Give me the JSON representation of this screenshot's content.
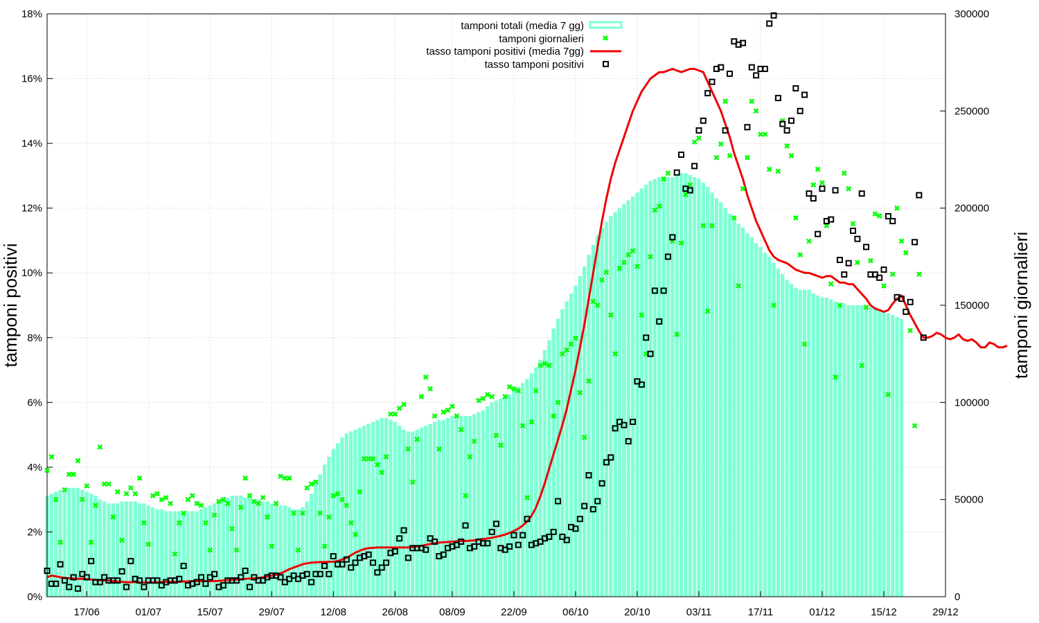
{
  "chart_data": {
    "type": "bar",
    "title": "",
    "ylabel_left": "tamponi positivi",
    "ylabel_right": "tamponi giornalieri",
    "xlabel": "",
    "x_start": "2020-06-08",
    "x_end": "2020-12-29",
    "x_ticks": [
      {
        "date": "2020-06-17",
        "label": "17/06"
      },
      {
        "date": "2020-07-01",
        "label": "01/07"
      },
      {
        "date": "2020-07-15",
        "label": "15/07"
      },
      {
        "date": "2020-07-29",
        "label": "29/07"
      },
      {
        "date": "2020-08-12",
        "label": "12/08"
      },
      {
        "date": "2020-08-26",
        "label": "26/08"
      },
      {
        "date": "2020-09-08",
        "label": "08/09"
      },
      {
        "date": "2020-09-22",
        "label": "22/09"
      },
      {
        "date": "2020-10-06",
        "label": "06/10"
      },
      {
        "date": "2020-10-20",
        "label": "20/10"
      },
      {
        "date": "2020-11-03",
        "label": "03/11"
      },
      {
        "date": "2020-11-17",
        "label": "17/11"
      },
      {
        "date": "2020-12-01",
        "label": "01/12"
      },
      {
        "date": "2020-12-15",
        "label": "15/12"
      },
      {
        "date": "2020-12-29",
        "label": "29/12"
      }
    ],
    "y_left": {
      "min": 0,
      "max": 18,
      "unit": "%",
      "ticks": [
        "0%",
        "2%",
        "4%",
        "6%",
        "8%",
        "10%",
        "12%",
        "14%",
        "16%",
        "18%"
      ]
    },
    "y_right": {
      "min": 0,
      "max": 300000,
      "ticks": [
        "0",
        "50000",
        "100000",
        "150000",
        "200000",
        "250000",
        "300000"
      ]
    },
    "grid": true,
    "legend_position": "top-center",
    "colors": {
      "bars": "#7fffd4",
      "daily_tests": "#00ff00",
      "rate_avg": "#ee0000",
      "rate_daily": "#000000"
    },
    "series": [
      {
        "name": "tamponi totali (media 7 gg)",
        "type": "bar",
        "axis": "right",
        "start_date": "2020-06-08",
        "values": [
          52000,
          53000,
          54000,
          55000,
          56000,
          56000,
          56000,
          56000,
          55000,
          54000,
          53000,
          52000,
          50000,
          49000,
          48000,
          48000,
          48000,
          49000,
          49000,
          49000,
          49000,
          48000,
          48000,
          47000,
          46000,
          45000,
          45000,
          44000,
          44000,
          44000,
          44000,
          44000,
          44000,
          44000,
          44000,
          45000,
          46000,
          47000,
          48000,
          49000,
          50000,
          51000,
          52000,
          52000,
          52000,
          51000,
          51000,
          50000,
          50000,
          49000,
          49000,
          48000,
          48000,
          47000,
          47000,
          46000,
          45000,
          45000,
          46000,
          49000,
          53000,
          58000,
          63000,
          68000,
          72000,
          76000,
          79000,
          82000,
          84000,
          85000,
          86000,
          87000,
          88000,
          89000,
          90000,
          91000,
          92000,
          92000,
          91000,
          90000,
          88000,
          86000,
          85000,
          85000,
          86000,
          87000,
          88000,
          89000,
          90000,
          91000,
          91000,
          92000,
          93000,
          93000,
          93000,
          93000,
          93000,
          94000,
          95000,
          96000,
          98000,
          100000,
          101000,
          102000,
          103000,
          104000,
          106000,
          108000,
          110000,
          112000,
          115000,
          118000,
          122000,
          127000,
          132000,
          138000,
          143000,
          148000,
          152000,
          156000,
          160000,
          165000,
          170000,
          176000,
          181000,
          186000,
          190000,
          193000,
          196000,
          198000,
          200000,
          202000,
          204000,
          206000,
          208000,
          210000,
          212000,
          214000,
          215000,
          216000,
          216000,
          216000,
          216000,
          217000,
          218000,
          218000,
          217000,
          216000,
          215000,
          213000,
          211000,
          208000,
          205000,
          203000,
          200000,
          197000,
          195000,
          192000,
          190000,
          187000,
          185000,
          182000,
          180000,
          177000,
          175000,
          172000,
          169000,
          166000,
          163000,
          161000,
          159000,
          158000,
          158000,
          158000,
          156000,
          155000,
          154000,
          154000,
          153000,
          152000,
          151000,
          151000,
          150000,
          150000,
          150000,
          150000,
          149000,
          149000,
          148000,
          148000,
          147000,
          146000,
          145000,
          144000,
          143000
        ]
      },
      {
        "name": "tamponi giornalieri",
        "type": "scatter",
        "axis": "right",
        "start_date": "2020-06-08",
        "values": [
          65000,
          72000,
          50000,
          28000,
          55000,
          63000,
          63000,
          70000,
          50000,
          57000,
          28000,
          47000,
          77000,
          58000,
          58000,
          41000,
          54000,
          29000,
          53000,
          56000,
          53000,
          61000,
          38000,
          27000,
          52000,
          53000,
          50000,
          51000,
          48000,
          22000,
          38000,
          43000,
          50000,
          52000,
          48000,
          47000,
          38000,
          24000,
          42000,
          49000,
          50000,
          48000,
          35000,
          24000,
          46000,
          61000,
          52000,
          49000,
          48000,
          51000,
          41000,
          26000,
          48000,
          62000,
          61000,
          61000,
          43000,
          24000,
          43000,
          56000,
          58000,
          59000,
          43000,
          26000,
          41000,
          52000,
          53000,
          50000,
          47000,
          38000,
          32000,
          54000,
          71000,
          71000,
          71000,
          68000,
          64000,
          72000,
          94000,
          94000,
          97000,
          99000,
          76000,
          59000,
          81000,
          103000,
          113000,
          107000,
          93000,
          76000,
          95000,
          96000,
          98000,
          93000,
          86000,
          52000,
          72000,
          80000,
          101000,
          102000,
          104000,
          103000,
          83000,
          78000,
          103000,
          108000,
          107000,
          106000,
          88000,
          51000,
          90000,
          106000,
          119000,
          120000,
          119000,
          93000,
          100000,
          125000,
          127000,
          130000,
          133000,
          105000,
          82000,
          111000,
          152000,
          150000,
          163000,
          167000,
          145000,
          125000,
          169000,
          172000,
          176000,
          178000,
          170000,
          145000,
          125000,
          175000,
          199000,
          201000,
          215000,
          218000,
          183000,
          135000,
          182000,
          207000,
          212000,
          234000,
          236000,
          191000,
          147000,
          191000,
          226000,
          233000,
          255000,
          227000,
          195000,
          160000,
          210000,
          226000,
          255000,
          250000,
          238000,
          238000,
          220000,
          150000,
          219000,
          245000,
          232000,
          227000,
          195000,
          176000,
          130000,
          183000,
          212000,
          220000,
          213000,
          191000,
          161000,
          113000,
          150000,
          218000,
          210000,
          192000,
          172000,
          119000,
          149000,
          173000,
          197000,
          196000,
          160000,
          104000,
          166000,
          200000,
          183000,
          177000,
          137000,
          88000,
          166000
        ]
      },
      {
        "name": "tasso tamponi positivi (media 7gg)",
        "type": "line",
        "axis": "left",
        "start_date": "2020-06-08",
        "values": [
          0.6,
          0.65,
          0.63,
          0.6,
          0.58,
          0.57,
          0.56,
          0.55,
          0.55,
          0.54,
          0.53,
          0.52,
          0.51,
          0.5,
          0.5,
          0.48,
          0.47,
          0.46,
          0.45,
          0.45,
          0.45,
          0.44,
          0.44,
          0.44,
          0.44,
          0.45,
          0.45,
          0.46,
          0.46,
          0.46,
          0.46,
          0.47,
          0.47,
          0.48,
          0.48,
          0.48,
          0.48,
          0.48,
          0.48,
          0.49,
          0.5,
          0.51,
          0.52,
          0.53,
          0.54,
          0.55,
          0.56,
          0.57,
          0.58,
          0.6,
          0.62,
          0.65,
          0.68,
          0.72,
          0.78,
          0.85,
          0.9,
          0.95,
          1.0,
          1.03,
          1.05,
          1.06,
          1.07,
          1.07,
          1.08,
          1.08,
          1.1,
          1.15,
          1.2,
          1.28,
          1.36,
          1.42,
          1.47,
          1.5,
          1.51,
          1.52,
          1.52,
          1.52,
          1.52,
          1.52,
          1.52,
          1.52,
          1.52,
          1.53,
          1.55,
          1.57,
          1.6,
          1.63,
          1.65,
          1.67,
          1.68,
          1.69,
          1.7,
          1.71,
          1.72,
          1.72,
          1.73,
          1.74,
          1.76,
          1.78,
          1.8,
          1.82,
          1.85,
          1.88,
          1.92,
          1.97,
          2.03,
          2.1,
          2.2,
          2.32,
          2.5,
          2.75,
          3.1,
          3.5,
          3.95,
          4.4,
          4.85,
          5.3,
          5.8,
          6.4,
          7.0,
          7.7,
          8.4,
          9.2,
          10.0,
          10.8,
          11.6,
          12.3,
          12.9,
          13.4,
          13.8,
          14.2,
          14.6,
          15.0,
          15.3,
          15.6,
          15.8,
          16.0,
          16.1,
          16.2,
          16.2,
          16.25,
          16.3,
          16.25,
          16.2,
          16.25,
          16.3,
          16.3,
          16.25,
          16.2,
          15.9,
          15.6,
          15.3,
          15.0,
          14.6,
          14.2,
          13.7,
          13.3,
          12.9,
          12.4,
          12.0,
          11.6,
          11.3,
          11.0,
          10.7,
          10.5,
          10.4,
          10.35,
          10.3,
          10.2,
          10.1,
          10.05,
          10.0,
          10.0,
          9.95,
          9.9,
          9.85,
          9.9,
          9.9,
          9.8,
          9.7,
          9.7,
          9.65,
          9.65,
          9.5,
          9.35,
          9.2,
          9.0,
          8.9,
          8.85,
          8.8,
          8.85,
          9.05,
          9.2,
          9.3,
          9.0,
          8.7,
          8.45,
          8.2,
          8.0,
          8.0,
          8.05,
          8.15,
          8.1,
          8.0,
          7.95,
          8.0,
          8.1,
          7.95,
          7.9,
          7.95,
          7.85,
          7.7,
          7.7,
          7.85,
          7.8,
          7.7,
          7.7,
          7.75
        ]
      },
      {
        "name": "tasso tamponi positivi",
        "type": "scatter",
        "axis": "left",
        "start_date": "2020-06-08",
        "values": [
          0.8,
          0.4,
          0.4,
          1.0,
          0.5,
          0.3,
          0.6,
          0.25,
          0.7,
          0.6,
          1.1,
          0.45,
          0.45,
          0.6,
          0.5,
          0.5,
          0.5,
          0.78,
          0.3,
          1.1,
          0.55,
          0.5,
          0.3,
          0.5,
          0.5,
          0.5,
          0.35,
          0.45,
          0.5,
          0.5,
          0.55,
          0.95,
          0.35,
          0.4,
          0.45,
          0.6,
          0.4,
          0.6,
          0.7,
          0.3,
          0.35,
          0.5,
          0.5,
          0.5,
          0.6,
          0.8,
          0.3,
          0.6,
          0.5,
          0.5,
          0.6,
          0.65,
          0.65,
          0.6,
          0.45,
          0.55,
          0.65,
          0.55,
          0.65,
          0.7,
          0.45,
          0.7,
          0.7,
          0.95,
          0.7,
          1.25,
          1.0,
          1.0,
          1.15,
          0.9,
          1.05,
          1.2,
          1.25,
          1.3,
          1.05,
          0.75,
          0.9,
          1.05,
          1.35,
          1.4,
          1.8,
          2.05,
          1.2,
          1.5,
          1.5,
          1.5,
          1.45,
          1.8,
          1.7,
          1.25,
          1.3,
          1.5,
          1.55,
          1.6,
          1.7,
          2.2,
          1.5,
          1.55,
          1.7,
          1.65,
          1.65,
          2.0,
          2.25,
          1.5,
          1.45,
          1.55,
          1.9,
          1.6,
          1.9,
          2.4,
          1.6,
          1.65,
          1.7,
          1.8,
          1.85,
          2.0,
          2.95,
          1.85,
          1.75,
          2.15,
          2.1,
          2.4,
          2.8,
          3.75,
          2.7,
          2.95,
          3.5,
          4.15,
          4.3,
          5.2,
          5.4,
          5.3,
          4.8,
          5.4,
          6.65,
          6.55,
          8.0,
          7.5,
          9.45,
          8.5,
          9.45,
          10.5,
          11.1,
          13.1,
          13.65,
          12.6,
          12.55,
          13.3,
          14.4,
          14.7,
          15.55,
          15.9,
          16.3,
          16.35,
          14.4,
          16.15,
          17.15,
          17.05,
          17.1,
          14.5,
          16.35,
          16.1,
          16.3,
          16.3,
          17.7,
          17.95,
          15.4,
          14.6,
          14.4,
          14.7,
          15.7,
          15.0,
          15.5,
          12.45,
          12.3,
          11.2,
          12.6,
          11.6,
          11.65,
          12.55,
          10.4,
          9.95,
          10.3,
          11.3,
          11.05,
          12.45,
          10.8,
          9.95,
          9.95,
          9.85,
          10.1,
          11.75,
          11.6,
          9.25,
          9.2,
          8.8,
          9.1,
          10.95,
          12.4,
          8.0
        ]
      }
    ]
  }
}
